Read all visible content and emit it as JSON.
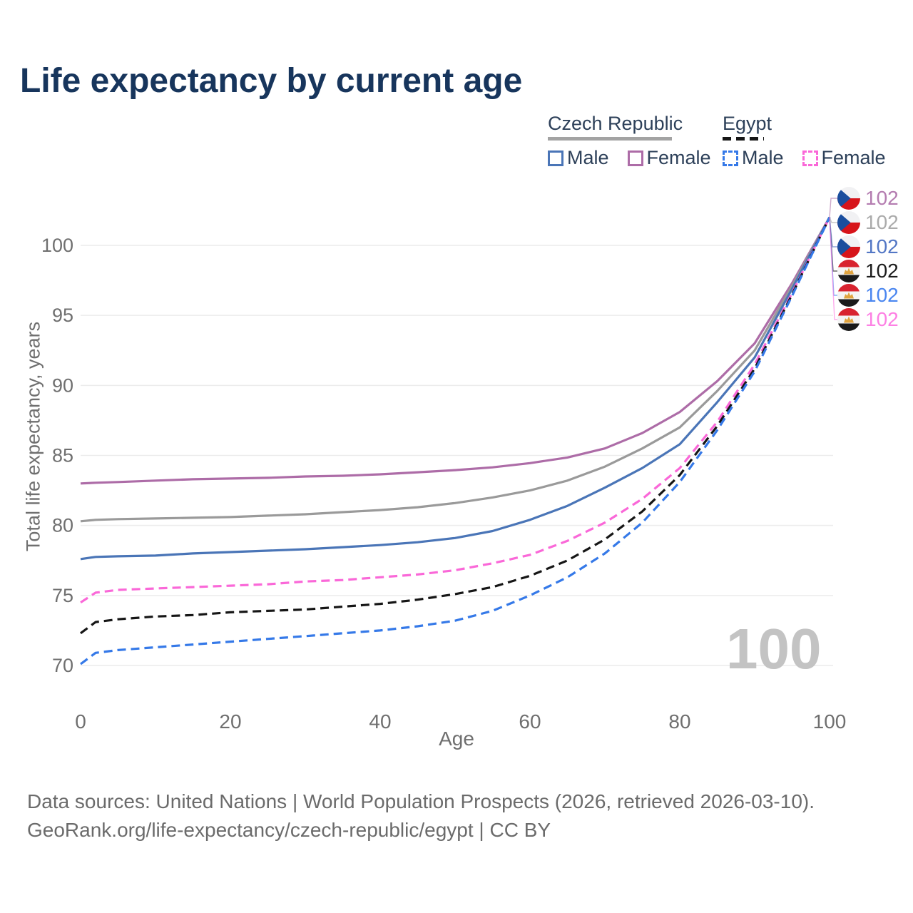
{
  "header": {
    "title": "Life expectancy by current age"
  },
  "legend": {
    "groups": [
      {
        "name": "Czech Republic",
        "line_style": "solid",
        "line_color": "#9a9a9a",
        "items": [
          {
            "label": "Male",
            "color": "#4a75b7",
            "style": "solid"
          },
          {
            "label": "Female",
            "color": "#ad6ca7",
            "style": "solid"
          }
        ]
      },
      {
        "name": "Egypt",
        "line_style": "dashed",
        "line_color": "#161616",
        "items": [
          {
            "label": "Male",
            "color": "#3579e8",
            "style": "dashed"
          },
          {
            "label": "Female",
            "color": "#fa68d8",
            "style": "dashed"
          }
        ]
      }
    ]
  },
  "chart_data": {
    "type": "line",
    "title": "Life expectancy by current age",
    "xlabel": "Age",
    "ylabel": "Total life expectancy, years",
    "xlim": [
      0,
      100
    ],
    "ylim": [
      67.5,
      103.5
    ],
    "xticks": [
      0,
      20,
      40,
      60,
      80,
      100
    ],
    "yticks": [
      70,
      75,
      80,
      85,
      90,
      95,
      100
    ],
    "grid": "horizontal",
    "legend_position": "top-right",
    "watermark": "100",
    "x": [
      0,
      2,
      5,
      10,
      15,
      20,
      25,
      30,
      35,
      40,
      45,
      50,
      55,
      60,
      65,
      70,
      75,
      80,
      85,
      90,
      95,
      100
    ],
    "series": [
      {
        "name": "Czech Republic Female",
        "country": "Czech Republic",
        "sex": "Female",
        "color": "#ad6ca7",
        "dashed": false,
        "end_value": 102,
        "values": [
          83.0,
          83.05,
          83.1,
          83.2,
          83.3,
          83.35,
          83.4,
          83.5,
          83.55,
          83.65,
          83.8,
          83.95,
          84.15,
          84.45,
          84.85,
          85.5,
          86.6,
          88.1,
          90.3,
          93.0,
          97.3,
          102
        ]
      },
      {
        "name": "Czech Republic (both sexes)",
        "country": "Czech Republic",
        "sex": "All",
        "color": "#9a9a9a",
        "dashed": false,
        "end_value": 102,
        "values": [
          80.3,
          80.4,
          80.45,
          80.5,
          80.55,
          80.6,
          80.7,
          80.8,
          80.95,
          81.1,
          81.3,
          81.6,
          82.0,
          82.5,
          83.2,
          84.2,
          85.5,
          87.0,
          89.6,
          92.5,
          97.1,
          102
        ]
      },
      {
        "name": "Czech Republic Male",
        "country": "Czech Republic",
        "sex": "Male",
        "color": "#4a75b7",
        "dashed": false,
        "end_value": 102,
        "values": [
          77.6,
          77.75,
          77.8,
          77.85,
          78.0,
          78.1,
          78.2,
          78.3,
          78.45,
          78.6,
          78.8,
          79.1,
          79.6,
          80.4,
          81.4,
          82.7,
          84.1,
          85.8,
          88.8,
          92.0,
          96.9,
          102
        ]
      },
      {
        "name": "Egypt Female",
        "country": "Egypt",
        "sex": "Female",
        "color": "#fa68d8",
        "dashed": true,
        "end_value": 102,
        "values": [
          74.5,
          75.2,
          75.4,
          75.5,
          75.6,
          75.7,
          75.8,
          76.0,
          76.1,
          76.3,
          76.5,
          76.8,
          77.3,
          77.9,
          78.9,
          80.2,
          81.9,
          84.1,
          87.4,
          91.5,
          96.6,
          102
        ]
      },
      {
        "name": "Egypt (both sexes)",
        "country": "Egypt",
        "sex": "All",
        "color": "#161616",
        "dashed": true,
        "end_value": 102,
        "values": [
          72.3,
          73.1,
          73.3,
          73.5,
          73.6,
          73.8,
          73.9,
          74.0,
          74.2,
          74.4,
          74.7,
          75.1,
          75.6,
          76.4,
          77.5,
          79.0,
          81.0,
          83.6,
          87.1,
          91.2,
          96.5,
          102
        ]
      },
      {
        "name": "Egypt Male",
        "country": "Egypt",
        "sex": "Male",
        "color": "#3579e8",
        "dashed": true,
        "end_value": 102,
        "values": [
          70.1,
          70.9,
          71.1,
          71.3,
          71.5,
          71.7,
          71.9,
          72.1,
          72.3,
          72.5,
          72.8,
          73.2,
          73.9,
          75.0,
          76.3,
          78.0,
          80.2,
          83.1,
          86.8,
          91.0,
          96.4,
          102
        ]
      }
    ]
  },
  "end_labels": [
    {
      "flag": "cz",
      "country": "Czech Republic",
      "series": "Czech Republic Female",
      "value": "102",
      "color": "#b47cb0"
    },
    {
      "flag": "cz",
      "country": "Czech Republic",
      "series": "Czech Republic (both sexes)",
      "value": "102",
      "color": "#ababab"
    },
    {
      "flag": "cz",
      "country": "Czech Republic",
      "series": "Czech Republic Male",
      "value": "102",
      "color": "#5377c5"
    },
    {
      "flag": "eg",
      "country": "Egypt",
      "series": "Egypt (both sexes)",
      "value": "102",
      "color": "#1c1c1c"
    },
    {
      "flag": "eg",
      "country": "Egypt",
      "series": "Egypt Male",
      "value": "102",
      "color": "#4a86f0"
    },
    {
      "flag": "eg",
      "country": "Egypt",
      "series": "Egypt Female",
      "value": "102",
      "color": "#fd80e4"
    }
  ],
  "footer": {
    "line1": "Data sources: United Nations | World Population Prospects (2026, retrieved 2026-03-10).",
    "line2": "GeoRank.org/life-expectancy/czech-republic/egypt | CC BY"
  }
}
